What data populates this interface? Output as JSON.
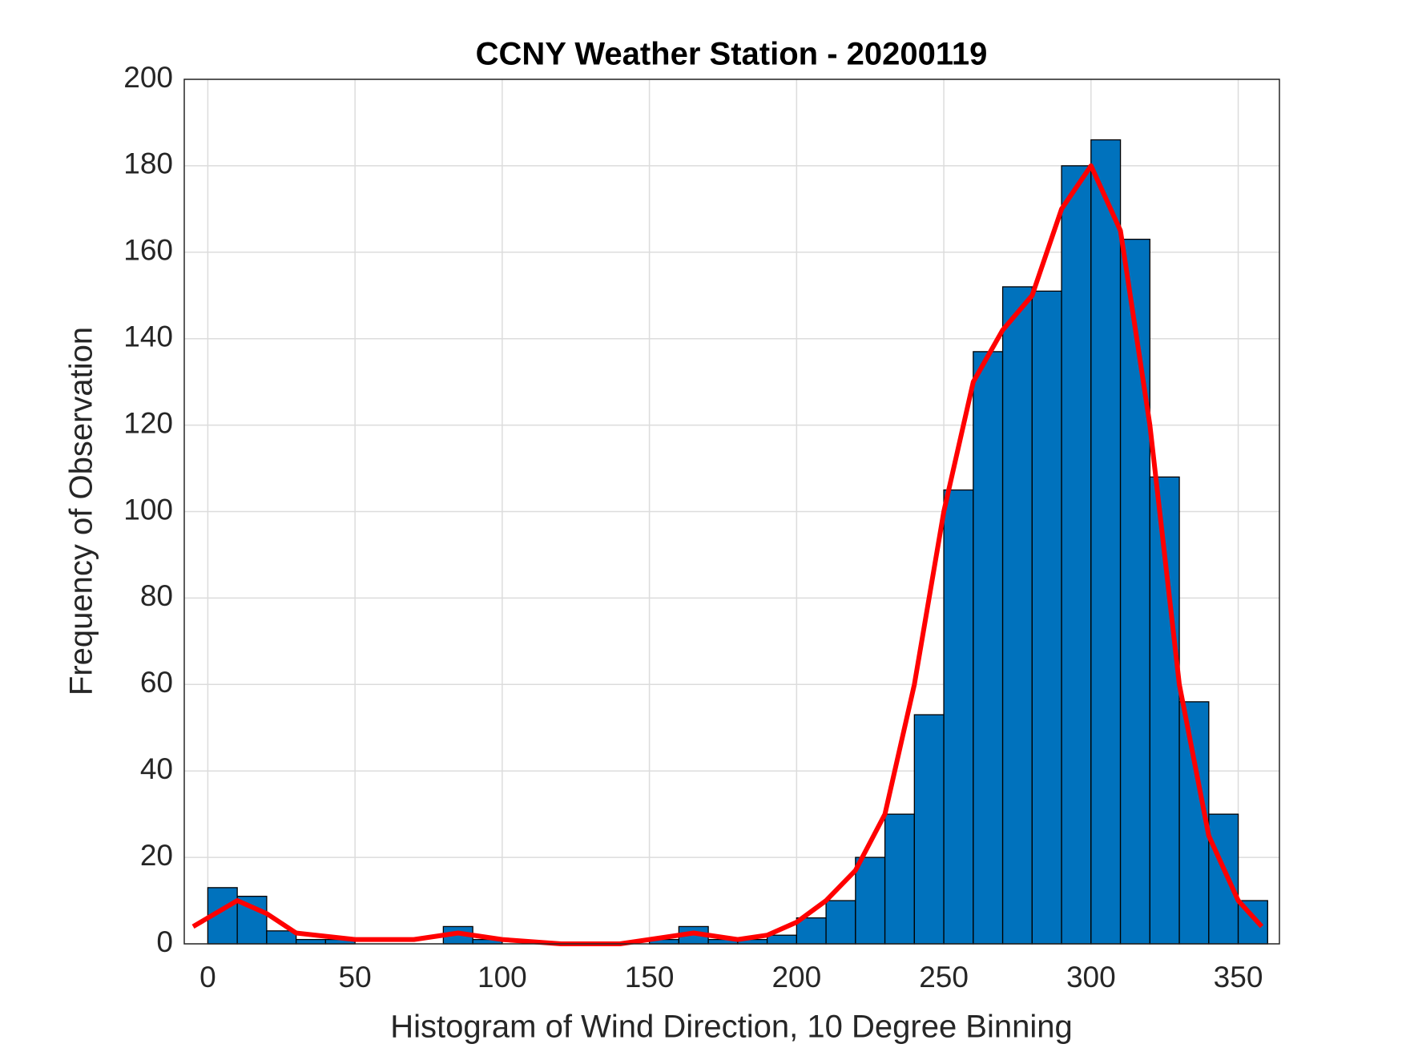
{
  "chart_data": {
    "type": "histogram",
    "title": "CCNY Weather Station - 20200119",
    "xlabel": "Histogram of Wind Direction, 10 Degree Binning",
    "ylabel": "Frequency of Observation",
    "bins": [
      0,
      10,
      20,
      30,
      40,
      50,
      60,
      70,
      80,
      90,
      100,
      110,
      120,
      130,
      140,
      150,
      160,
      170,
      180,
      190,
      200,
      210,
      220,
      230,
      240,
      250,
      260,
      270,
      280,
      290,
      300,
      310,
      320,
      330,
      340,
      350,
      360
    ],
    "counts": [
      13,
      11,
      3,
      1,
      1,
      0,
      0,
      0,
      4,
      1,
      0,
      0,
      0,
      0,
      0,
      1,
      4,
      1,
      1,
      2,
      6,
      10,
      20,
      30,
      53,
      105,
      137,
      152,
      151,
      180,
      186,
      163,
      108,
      56,
      30,
      10
    ],
    "color": "#0072bd",
    "curve": {
      "color": "#ff0000",
      "x": [
        -5,
        10,
        20,
        30,
        50,
        70,
        85,
        100,
        120,
        140,
        150,
        165,
        180,
        190,
        200,
        210,
        220,
        230,
        240,
        250,
        260,
        270,
        280,
        290,
        300,
        310,
        320,
        330,
        340,
        350,
        358
      ],
      "y": [
        4,
        10,
        7,
        2.5,
        1,
        1,
        2.5,
        1,
        0,
        0,
        1,
        2.5,
        1,
        2,
        5,
        10,
        17,
        30,
        60,
        100,
        130,
        142,
        150,
        170,
        180,
        165,
        120,
        60,
        25,
        10,
        4
      ]
    },
    "xlim": [
      -8,
      364
    ],
    "xticks": [
      0,
      50,
      100,
      150,
      200,
      250,
      300,
      350
    ],
    "ylim": [
      0,
      200
    ],
    "yticks": [
      0,
      20,
      40,
      60,
      80,
      100,
      120,
      140,
      160,
      180,
      200
    ],
    "grid": true
  }
}
